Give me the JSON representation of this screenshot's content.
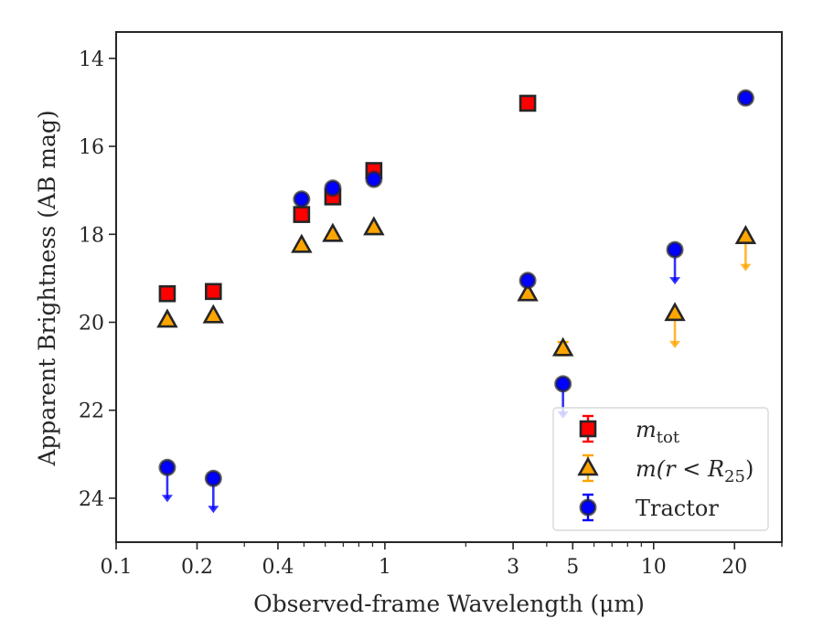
{
  "chart_data": {
    "type": "scatter",
    "title": "",
    "xlabel": "Observed-frame Wavelength (μm)",
    "ylabel": "Apparent Brightness (AB mag)",
    "xscale": "log",
    "xlim": [
      0.1,
      30
    ],
    "ylim": [
      25,
      13.4
    ],
    "y_inverted": true,
    "x_ticks": [
      0.1,
      0.2,
      0.4,
      1,
      3,
      5,
      10,
      20
    ],
    "x_tick_labels": [
      "0.1",
      "0.2",
      "0.4",
      "1",
      "3",
      "5",
      "10",
      "20"
    ],
    "y_ticks": [
      14,
      16,
      18,
      20,
      22,
      24
    ],
    "y_tick_labels": [
      "14",
      "16",
      "18",
      "20",
      "22",
      "24"
    ],
    "grid": false,
    "legend_position": "lower-right",
    "series": [
      {
        "name": "m_tot",
        "marker": "square",
        "color": "#ff0000",
        "points": [
          {
            "x": 0.155,
            "y": 19.35
          },
          {
            "x": 0.23,
            "y": 19.3
          },
          {
            "x": 0.49,
            "y": 17.55
          },
          {
            "x": 0.64,
            "y": 17.15
          },
          {
            "x": 0.91,
            "y": 16.55
          },
          {
            "x": 3.4,
            "y": 15.02
          }
        ]
      },
      {
        "name": "m(r < R25)",
        "marker": "triangle",
        "color": "#ffa500",
        "points": [
          {
            "x": 0.155,
            "y": 19.95,
            "upper_limit": false
          },
          {
            "x": 0.23,
            "y": 19.85,
            "upper_limit": false
          },
          {
            "x": 0.49,
            "y": 18.25,
            "upper_limit": false
          },
          {
            "x": 0.64,
            "y": 18.0,
            "upper_limit": false
          },
          {
            "x": 0.91,
            "y": 17.85,
            "upper_limit": false
          },
          {
            "x": 3.4,
            "y": 19.35,
            "upper_limit": false
          },
          {
            "x": 4.6,
            "y": 20.6,
            "upper_limit": false,
            "err": 0.15
          },
          {
            "x": 12,
            "y": 19.8,
            "upper_limit": true
          },
          {
            "x": 22,
            "y": 18.05,
            "upper_limit": true
          }
        ]
      },
      {
        "name": "Tractor",
        "marker": "circle",
        "color": "#0000ff",
        "points": [
          {
            "x": 0.155,
            "y": 23.3,
            "upper_limit": true
          },
          {
            "x": 0.23,
            "y": 23.55,
            "upper_limit": true
          },
          {
            "x": 0.49,
            "y": 17.2,
            "upper_limit": false
          },
          {
            "x": 0.64,
            "y": 16.95,
            "upper_limit": false
          },
          {
            "x": 0.91,
            "y": 16.75,
            "upper_limit": false
          },
          {
            "x": 3.4,
            "y": 19.05,
            "upper_limit": false
          },
          {
            "x": 4.6,
            "y": 21.4,
            "upper_limit": true
          },
          {
            "x": 12,
            "y": 18.35,
            "upper_limit": true
          },
          {
            "x": 22,
            "y": 14.9,
            "upper_limit": false
          }
        ]
      }
    ],
    "legend": [
      {
        "base": "m",
        "sub": "tot",
        "marker": "square",
        "color": "#ff0000"
      },
      {
        "text": "m(r < R",
        "sub": "25",
        "suffix": ")",
        "marker": "triangle",
        "color": "#ffa500"
      },
      {
        "text": "Tractor",
        "marker": "circle",
        "color": "#0000ff"
      }
    ]
  }
}
